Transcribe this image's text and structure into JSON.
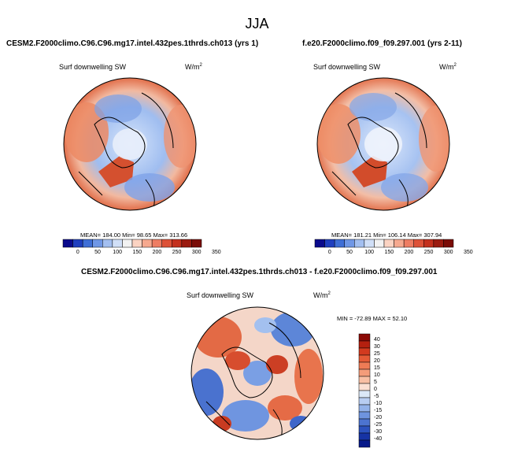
{
  "figure": {
    "title": "JJA"
  },
  "panels": [
    {
      "title": "CESM2.F2000climo.C96.C96.mg17.intel.432pes.1thrds.ch013 (yrs 1)",
      "variable": "Surf downwelling SW",
      "units_base": "W/m",
      "units_exp": "2",
      "stats": "MEAN= 184.00  Min= 98.65  Max= 313.66"
    },
    {
      "title": "f.e20.F2000climo.f09_f09.297.001 (yrs 2-11)",
      "variable": "Surf downwelling SW",
      "units_base": "W/m",
      "units_exp": "2",
      "stats": "MEAN= 181.21  Min= 106.14  Max= 307.94"
    },
    {
      "title": "CESM2.F2000climo.C96.C96.mg17.intel.432pes.1thrds.ch013 - f.e20.F2000climo.f09_f09.297.001",
      "variable": "Surf downwelling SW",
      "units_base": "W/m",
      "units_exp": "2",
      "stats": "MIN = -72.89  MAX =  52.10"
    }
  ],
  "colorbar_abs": {
    "ticks": [
      "0",
      "50",
      "100",
      "150",
      "200",
      "250",
      "300",
      "350"
    ],
    "colors": [
      "#0a0a8c",
      "#1f3fbf",
      "#3f6fd6",
      "#6f97e6",
      "#a3bff0",
      "#d0dff7",
      "#f2f2f2",
      "#fbd3c2",
      "#f6a98f",
      "#ee7d63",
      "#dd5238",
      "#c3301d",
      "#9b1b10",
      "#7a0c07"
    ]
  },
  "colorbar_diff": {
    "ticks": [
      "40",
      "30",
      "25",
      "20",
      "15",
      "10",
      "5",
      "0",
      "-5",
      "-10",
      "-15",
      "-20",
      "-25",
      "-30",
      "-40"
    ],
    "colors": [
      "#8b0a05",
      "#b4200f",
      "#d23a1f",
      "#e45a36",
      "#ee7b55",
      "#f49c7a",
      "#f8bfa4",
      "#fbe0d3",
      "#dbe8f8",
      "#b8cdf2",
      "#93b2ea",
      "#6e94df",
      "#4c74d0",
      "#2c52be",
      "#1633a4",
      "#06198a"
    ]
  }
}
